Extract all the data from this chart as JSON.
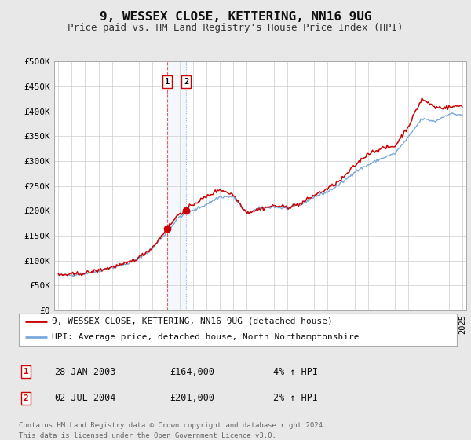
{
  "title": "9, WESSEX CLOSE, KETTERING, NN16 9UG",
  "subtitle": "Price paid vs. HM Land Registry's House Price Index (HPI)",
  "bg_color": "#e8e8e8",
  "plot_bg_color": "#ffffff",
  "grid_color": "#cccccc",
  "ylim": [
    0,
    500000
  ],
  "yticks": [
    0,
    50000,
    100000,
    150000,
    200000,
    250000,
    300000,
    350000,
    400000,
    450000,
    500000
  ],
  "ytick_labels": [
    "£0",
    "£50K",
    "£100K",
    "£150K",
    "£200K",
    "£250K",
    "£300K",
    "£350K",
    "£400K",
    "£450K",
    "£500K"
  ],
  "xlim_start": 1994.7,
  "xlim_end": 2025.3,
  "red_line_color": "#cc0000",
  "blue_line_color": "#7aaadd",
  "sale1_x": 2003.08,
  "sale1_y": 164000,
  "sale2_x": 2004.5,
  "sale2_y": 201000,
  "legend_line1": "9, WESSEX CLOSE, KETTERING, NN16 9UG (detached house)",
  "legend_line2": "HPI: Average price, detached house, North Northamptonshire",
  "sale1_date": "28-JAN-2003",
  "sale1_price": "£164,000",
  "sale1_hpi": "4% ↑ HPI",
  "sale2_date": "02-JUL-2004",
  "sale2_price": "£201,000",
  "sale2_hpi": "2% ↑ HPI",
  "footer_line1": "Contains HM Land Registry data © Crown copyright and database right 2024.",
  "footer_line2": "This data is licensed under the Open Government Licence v3.0.",
  "title_fontsize": 11.5,
  "subtitle_fontsize": 9,
  "axis_fontsize": 8,
  "legend_fontsize": 8,
  "footer_fontsize": 6.5
}
